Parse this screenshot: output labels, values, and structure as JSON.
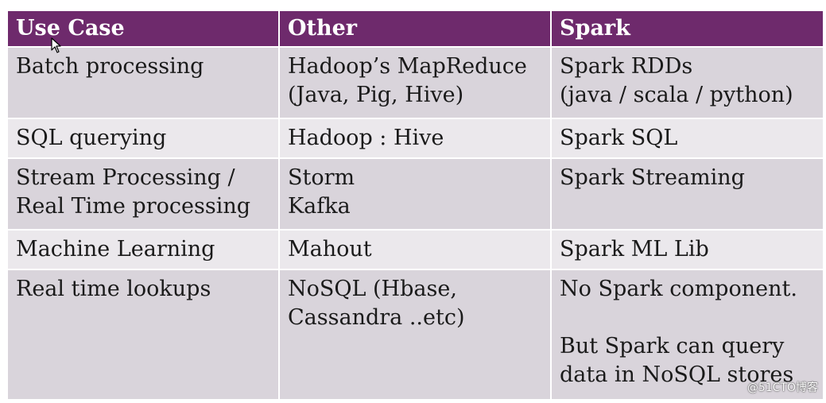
{
  "table": {
    "headers": [
      "Use Case",
      "Other",
      "Spark"
    ],
    "rows": [
      {
        "use_case": [
          "Batch processing"
        ],
        "other": [
          "Hadoop’s MapReduce",
          "(Java, Pig, Hive)"
        ],
        "spark": [
          "Spark RDDs",
          "(java / scala / python)"
        ]
      },
      {
        "use_case": [
          "SQL querying"
        ],
        "other": [
          "Hadoop : Hive"
        ],
        "spark": [
          "Spark SQL"
        ]
      },
      {
        "use_case": [
          "Stream Processing /",
          "Real Time processing"
        ],
        "other": [
          "Storm",
          "Kafka"
        ],
        "spark": [
          "Spark Streaming"
        ]
      },
      {
        "use_case": [
          "Machine Learning"
        ],
        "other": [
          "Mahout"
        ],
        "spark": [
          "Spark ML Lib"
        ]
      },
      {
        "use_case": [
          "Real time lookups"
        ],
        "other": [
          "NoSQL (Hbase,",
          "Cassandra ..etc)"
        ],
        "spark": [
          "No Spark component.",
          "But Spark can query",
          "data in NoSQL stores"
        ]
      }
    ]
  },
  "watermark": "@51CTO博客",
  "colors": {
    "header_bg": "#6e2a6c",
    "header_text": "#ffffff",
    "row_odd_bg": "#d9d4db",
    "row_even_bg": "#ebe8ec"
  },
  "icons": {
    "cursor": "mouse-pointer-icon"
  }
}
